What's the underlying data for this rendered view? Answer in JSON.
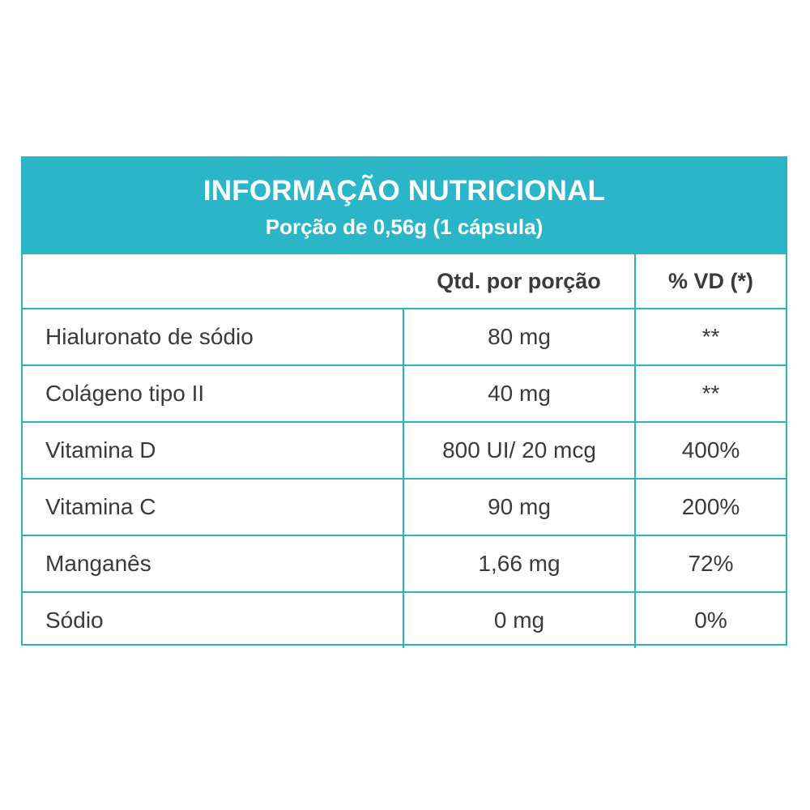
{
  "header": {
    "title": "INFORMAÇÃO NUTRICIONAL",
    "subtitle": "Porção de 0,56g (1 cápsula)"
  },
  "columns": {
    "name": "",
    "qty": "Qtd. por porção",
    "vd": "% VD (*)"
  },
  "rows": [
    {
      "name": "Hialuronato de sódio",
      "qty": "80 mg",
      "vd": "**"
    },
    {
      "name": "Colágeno tipo II",
      "qty": "40 mg",
      "vd": "**"
    },
    {
      "name": "Vitamina D",
      "qty": "800 UI/ 20 mcg",
      "vd": "400%"
    },
    {
      "name": "Vitamina C",
      "qty": "90 mg",
      "vd": "200%"
    },
    {
      "name": "Manganês",
      "qty": "1,66 mg",
      "vd": "72%"
    },
    {
      "name": "Sódio",
      "qty": "0 mg",
      "vd": "0%"
    }
  ],
  "colors": {
    "accent": "#2ab6c8",
    "text": "#3a3a3a",
    "header_text": "#ffffff"
  }
}
